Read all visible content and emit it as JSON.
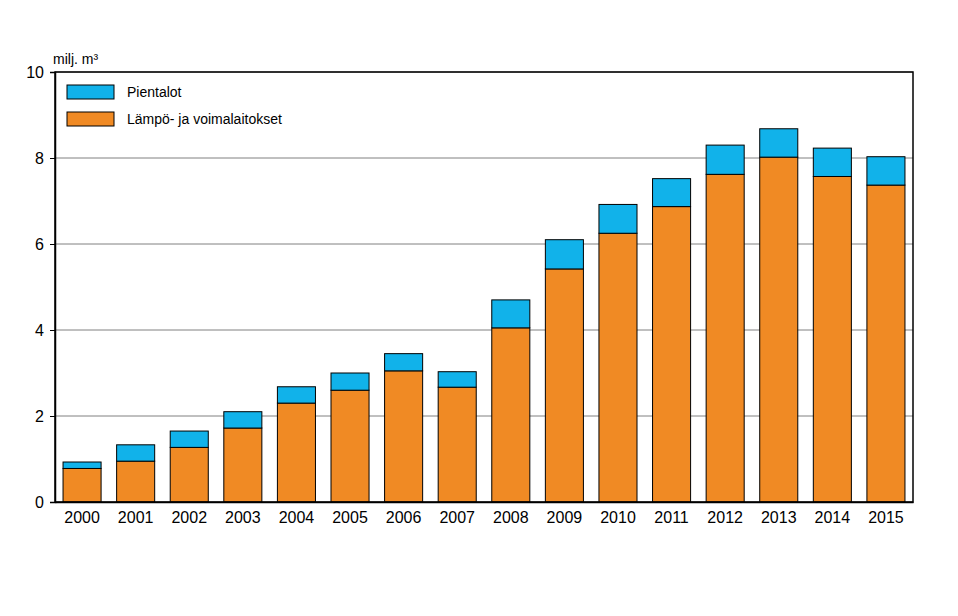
{
  "chart_data": {
    "type": "bar",
    "stacked": true,
    "grid": true,
    "legend": "top-left",
    "y_label": "milj. m³",
    "categories": [
      "2000",
      "2001",
      "2002",
      "2003",
      "2004",
      "2005",
      "2006",
      "2007",
      "2008",
      "2009",
      "2010",
      "2011",
      "2012",
      "2013",
      "2014",
      "2015"
    ],
    "series": [
      {
        "name": "Lämpö- ja voimalaitokset",
        "color": "#f08a24",
        "values": [
          0.78,
          0.95,
          1.27,
          1.72,
          2.3,
          2.6,
          3.05,
          2.67,
          4.05,
          5.42,
          6.25,
          6.87,
          7.62,
          8.02,
          7.57,
          7.37
        ]
      },
      {
        "name": "Pientalot",
        "color": "#11b2ea",
        "values": [
          0.15,
          0.38,
          0.38,
          0.38,
          0.38,
          0.4,
          0.4,
          0.36,
          0.65,
          0.68,
          0.67,
          0.65,
          0.68,
          0.66,
          0.66,
          0.66
        ]
      }
    ],
    "ylim": [
      0,
      10
    ],
    "yticks": [
      0,
      2,
      4,
      6,
      8,
      10
    ]
  }
}
